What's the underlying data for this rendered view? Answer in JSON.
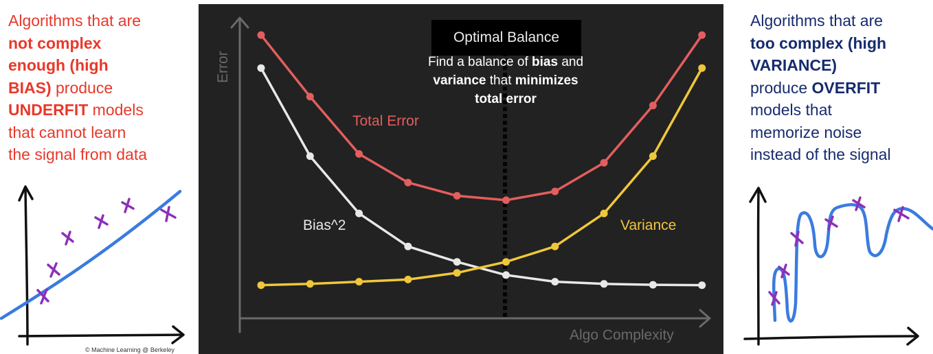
{
  "left_panel": {
    "line1": "Algorithms that are",
    "line2": "not complex",
    "line3": "enough (high",
    "line4_bold": "BIAS)",
    "line4_rest": " produce",
    "line5_bold": "UNDERFIT",
    "line5_rest": " models",
    "line6": "that cannot learn",
    "line7": "the signal from data",
    "copyright": "© Machine Learning @ Berkeley"
  },
  "right_panel": {
    "line1": "Algorithms that are",
    "line2": "too complex (high",
    "line3": "VARIANCE)",
    "line4_plain": "produce ",
    "line4_bold": "OVERFIT",
    "line5": "models that",
    "line6": "memorize noise",
    "line7": "instead of the signal"
  },
  "annotation": {
    "box": "Optimal Balance",
    "t1": "Find a balance of ",
    "t2": "bias",
    "t3": " and",
    "t4": "variance",
    "t5": " that ",
    "t6": "minimizes",
    "t7": "total error"
  },
  "colors": {
    "left_text": "#e8382a",
    "right_text": "#162b6e",
    "sketch_line": "#3a7be0",
    "sketch_marks": "#8e2fb8",
    "panel_bg": "#222222",
    "total": "#e35e5e",
    "bias": "#e8e8e8",
    "variance": "#f0c73a"
  },
  "chart_data": {
    "type": "line",
    "xlabel": "Algo Complexity",
    "ylabel": "Error",
    "x": [
      1,
      2,
      3,
      4,
      5,
      6,
      7,
      8,
      9,
      10
    ],
    "series": [
      {
        "name": "Total Error",
        "values": [
          5.7,
          4.3,
          3.0,
          2.35,
          2.05,
          1.95,
          2.15,
          2.8,
          4.1,
          5.7
        ]
      },
      {
        "name": "Bias^2",
        "values": [
          4.95,
          2.95,
          1.65,
          0.9,
          0.55,
          0.25,
          0.1,
          0.05,
          0.03,
          0.02
        ]
      },
      {
        "name": "Variance",
        "values": [
          0.02,
          0.05,
          0.1,
          0.15,
          0.3,
          0.55,
          0.9,
          1.65,
          2.95,
          4.95
        ]
      }
    ],
    "optimal_x": 6,
    "grid": false
  }
}
